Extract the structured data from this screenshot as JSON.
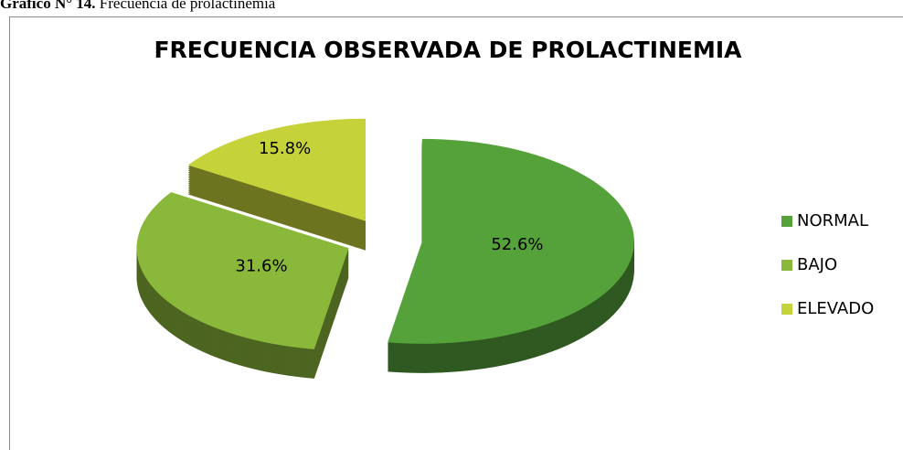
{
  "caption": {
    "label": "Gráfico N° 14.",
    "text": "Frecuencia de prolactinemia"
  },
  "chart_data": {
    "type": "pie3d",
    "title": "FRECUENCIA OBSERVADA DE PROLACTINEMIA",
    "categories": [
      "NORMAL",
      "BAJO",
      "ELEVADO"
    ],
    "values": [
      52.6,
      31.6,
      15.8
    ],
    "value_labels": [
      "52.6%",
      "31.6%",
      "15.8%"
    ],
    "colors": [
      "#55a23b",
      "#8ab83a",
      "#c6d23a"
    ],
    "legend": "right"
  }
}
